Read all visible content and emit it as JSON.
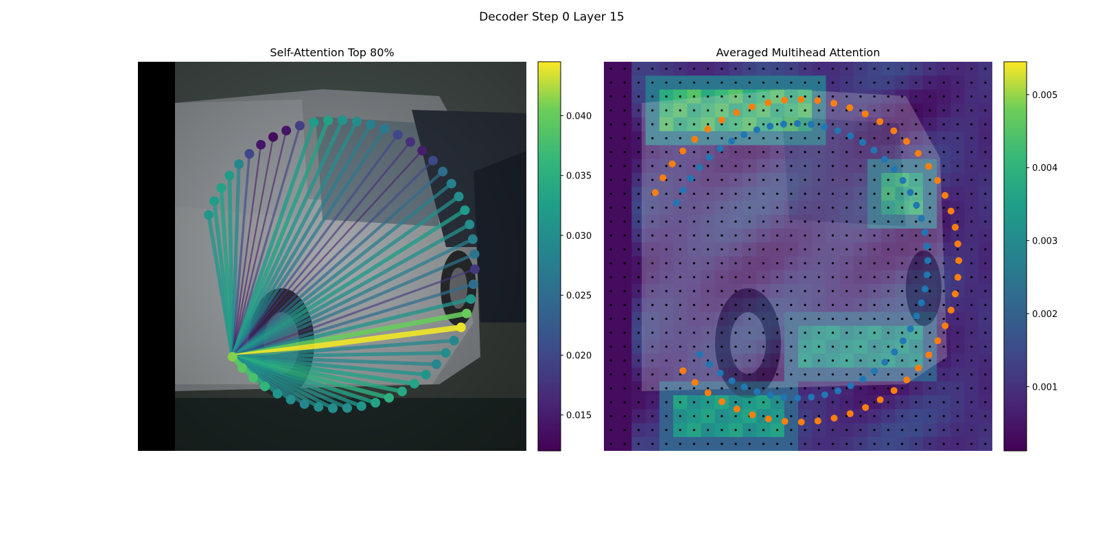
{
  "figure": {
    "suptitle": "Decoder Step 0 Layer 15"
  },
  "chart_data": [
    {
      "type": "network",
      "title": "Self-Attention Top 80%",
      "colormap": "viridis",
      "colorbar": {
        "range": [
          0.012,
          0.0445
        ],
        "ticks": [
          0.015,
          0.02,
          0.025,
          0.03,
          0.035,
          0.04
        ],
        "tick_labels": [
          "0.015",
          "0.020",
          "0.025",
          "0.030",
          "0.035",
          "0.040"
        ]
      },
      "query_node": 50,
      "node_weights": [
        0.031,
        0.032,
        0.033,
        0.032,
        0.029,
        0.02,
        0.014,
        0.013,
        0.014,
        0.019,
        0.032,
        0.033,
        0.031,
        0.03,
        0.028,
        0.027,
        0.02,
        0.017,
        0.015,
        0.02,
        0.025,
        0.028,
        0.03,
        0.032,
        0.03,
        0.028,
        0.026,
        0.018,
        0.025,
        0.031,
        0.04,
        0.044,
        0.029,
        0.03,
        0.029,
        0.031,
        0.033,
        0.034,
        0.035,
        0.033,
        0.031,
        0.03,
        0.03,
        0.03,
        0.029,
        0.03,
        0.031,
        0.036,
        0.038,
        0.039,
        0.041
      ],
      "note": "Decoder boundary points (top 80% attention) drawn over a dim photo of a silver car; edges connect the query point to every other point, colored by attention weight."
    },
    {
      "type": "heatmap",
      "title": "Averaged Multihead Attention",
      "colormap": "viridis",
      "colorbar": {
        "range": [
          0.00012,
          0.00545
        ],
        "ticks": [
          0.001,
          0.002,
          0.003,
          0.004,
          0.005
        ],
        "tick_labels": [
          "0.001",
          "0.002",
          "0.003",
          "0.004",
          "0.005"
        ]
      },
      "grid": {
        "rows": 28,
        "cols": 28
      },
      "hot_regions": [
        {
          "rows": [
            2,
            4
          ],
          "cols": [
            4,
            14
          ],
          "value": 0.0045
        },
        {
          "rows": [
            8,
            10
          ],
          "cols": [
            20,
            22
          ],
          "value": 0.0042
        },
        {
          "rows": [
            19,
            21
          ],
          "cols": [
            14,
            22
          ],
          "value": 0.0035
        },
        {
          "rows": [
            24,
            26
          ],
          "cols": [
            5,
            12
          ],
          "value": 0.0036
        }
      ],
      "series": [
        {
          "name": "",
          "color": "#1f77b4",
          "points": 50
        },
        {
          "name": "",
          "color": "#ff7f0e",
          "points": 50
        }
      ],
      "note": "28x28 attention heatmap overlaid on the same car photo; black dots mark the reference grid, blue dots the inner contour, orange dots the outer contour."
    }
  ]
}
